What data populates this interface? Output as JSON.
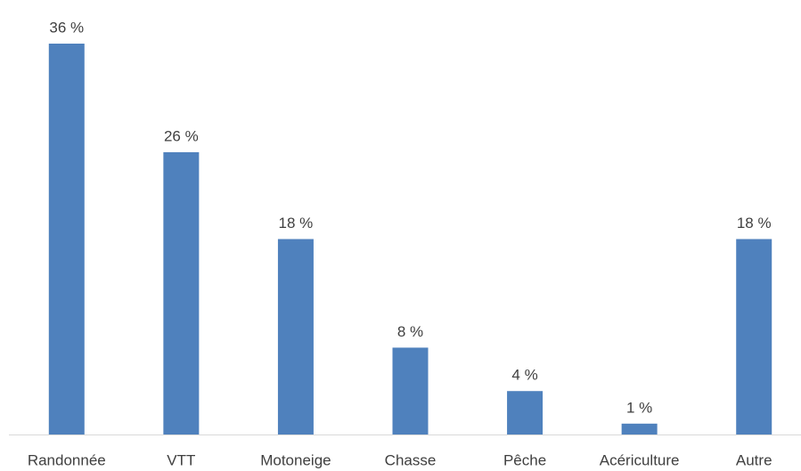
{
  "chart_data": {
    "type": "bar",
    "categories": [
      "Randonnée",
      "VTT",
      "Motoneige",
      "Chasse",
      "Pêche",
      "Acériculture",
      "Autre"
    ],
    "values": [
      36,
      26,
      18,
      8,
      4,
      1,
      18
    ],
    "value_labels": [
      "36 %",
      "26 %",
      "18 %",
      "8 %",
      "4 %",
      "1 %",
      "18 %"
    ],
    "color": "#4f81bd"
  }
}
